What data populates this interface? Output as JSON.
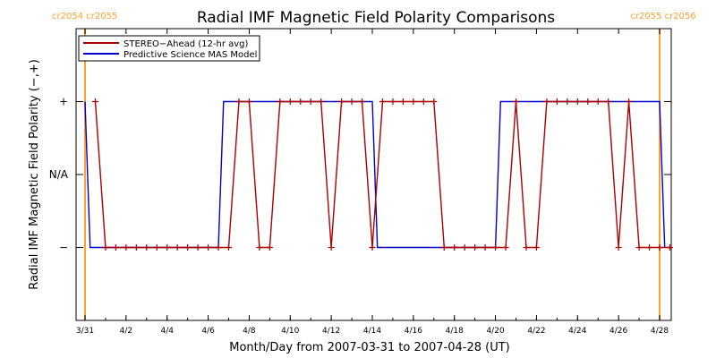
{
  "chart_data": {
    "type": "line",
    "title": "Radial IMF Magnetic Field Polarity Comparisons",
    "xlabel": "Month/Day from 2007-03-31 to 2007-04-28 (UT)",
    "ylabel": "Radial IMF Magnetic Field Polarity (−,+)",
    "x_range": [
      "2007-03-31",
      "2007-04-28"
    ],
    "x_ticks": [
      {
        "date": "2007-03-31",
        "label": "3/31"
      },
      {
        "date": "2007-04-02",
        "label": "4/2"
      },
      {
        "date": "2007-04-04",
        "label": "4/4"
      },
      {
        "date": "2007-04-06",
        "label": "4/6"
      },
      {
        "date": "2007-04-08",
        "label": "4/8"
      },
      {
        "date": "2007-04-10",
        "label": "4/10"
      },
      {
        "date": "2007-04-12",
        "label": "4/12"
      },
      {
        "date": "2007-04-14",
        "label": "4/14"
      },
      {
        "date": "2007-04-16",
        "label": "4/16"
      },
      {
        "date": "2007-04-18",
        "label": "4/18"
      },
      {
        "date": "2007-04-20",
        "label": "4/20"
      },
      {
        "date": "2007-04-22",
        "label": "4/22"
      },
      {
        "date": "2007-04-24",
        "label": "4/24"
      },
      {
        "date": "2007-04-26",
        "label": "4/26"
      },
      {
        "date": "2007-04-28",
        "label": "4/28"
      }
    ],
    "y_range": [
      -2,
      2
    ],
    "y_ticks": [
      {
        "value": 1,
        "label": "+"
      },
      {
        "value": 0,
        "label": "N/A"
      },
      {
        "value": -1,
        "label": "−"
      }
    ],
    "legend_position": "top-left",
    "series": [
      {
        "name": "STEREO−Ahead (12-hr avg)",
        "color": "#aa0000",
        "marker": "plus",
        "points": [
          [
            "2007-03-31T12:00",
            1
          ],
          [
            "2007-04-01T00:00",
            -1
          ],
          [
            "2007-04-01T12:00",
            -1
          ],
          [
            "2007-04-02T00:00",
            -1
          ],
          [
            "2007-04-02T12:00",
            -1
          ],
          [
            "2007-04-03T00:00",
            -1
          ],
          [
            "2007-04-03T12:00",
            -1
          ],
          [
            "2007-04-04T00:00",
            -1
          ],
          [
            "2007-04-04T12:00",
            -1
          ],
          [
            "2007-04-05T00:00",
            -1
          ],
          [
            "2007-04-05T12:00",
            -1
          ],
          [
            "2007-04-06T00:00",
            -1
          ],
          [
            "2007-04-06T12:00",
            -1
          ],
          [
            "2007-04-07T00:00",
            -1
          ],
          [
            "2007-04-07T12:00",
            1
          ],
          [
            "2007-04-08T00:00",
            1
          ],
          [
            "2007-04-08T12:00",
            -1
          ],
          [
            "2007-04-09T00:00",
            -1
          ],
          [
            "2007-04-09T12:00",
            1
          ],
          [
            "2007-04-10T00:00",
            1
          ],
          [
            "2007-04-10T12:00",
            1
          ],
          [
            "2007-04-11T00:00",
            1
          ],
          [
            "2007-04-11T12:00",
            1
          ],
          [
            "2007-04-12T00:00",
            -1
          ],
          [
            "2007-04-12T12:00",
            1
          ],
          [
            "2007-04-13T00:00",
            1
          ],
          [
            "2007-04-13T12:00",
            1
          ],
          [
            "2007-04-14T00:00",
            -1
          ],
          [
            "2007-04-14T12:00",
            1
          ],
          [
            "2007-04-15T00:00",
            1
          ],
          [
            "2007-04-15T12:00",
            1
          ],
          [
            "2007-04-16T00:00",
            1
          ],
          [
            "2007-04-16T12:00",
            1
          ],
          [
            "2007-04-17T00:00",
            1
          ],
          [
            "2007-04-17T12:00",
            -1
          ],
          [
            "2007-04-18T00:00",
            -1
          ],
          [
            "2007-04-18T12:00",
            -1
          ],
          [
            "2007-04-19T00:00",
            -1
          ],
          [
            "2007-04-19T12:00",
            -1
          ],
          [
            "2007-04-20T00:00",
            -1
          ],
          [
            "2007-04-20T12:00",
            -1
          ],
          [
            "2007-04-21T00:00",
            1
          ],
          [
            "2007-04-21T12:00",
            -1
          ],
          [
            "2007-04-22T00:00",
            -1
          ],
          [
            "2007-04-22T12:00",
            1
          ],
          [
            "2007-04-23T00:00",
            1
          ],
          [
            "2007-04-23T12:00",
            1
          ],
          [
            "2007-04-24T00:00",
            1
          ],
          [
            "2007-04-24T12:00",
            1
          ],
          [
            "2007-04-25T00:00",
            1
          ],
          [
            "2007-04-25T12:00",
            1
          ],
          [
            "2007-04-26T00:00",
            -1
          ],
          [
            "2007-04-26T12:00",
            1
          ],
          [
            "2007-04-27T00:00",
            -1
          ],
          [
            "2007-04-27T12:00",
            -1
          ],
          [
            "2007-04-28T00:00",
            -1
          ],
          [
            "2007-04-28T12:00",
            -1
          ]
        ]
      },
      {
        "name": "Predictive Science MAS Model",
        "color": "#0000cc",
        "marker": "none",
        "points": [
          [
            "2007-03-31T00:00",
            1
          ],
          [
            "2007-03-31T06:00",
            -1
          ],
          [
            "2007-04-06T12:00",
            -1
          ],
          [
            "2007-04-06T18:00",
            1
          ],
          [
            "2007-04-14T00:00",
            1
          ],
          [
            "2007-04-14T06:00",
            -1
          ],
          [
            "2007-04-20T00:00",
            -1
          ],
          [
            "2007-04-20T06:00",
            1
          ],
          [
            "2007-04-28T00:00",
            1
          ],
          [
            "2007-04-28T06:00",
            -1
          ]
        ]
      }
    ],
    "carrington_markers": [
      {
        "date": "2007-03-31T00:00",
        "label": "cr2054 cr2055",
        "color": "#ffa030"
      },
      {
        "date": "2007-04-28T00:00",
        "label": "cr2055 cr2056",
        "color": "#ffa030"
      }
    ]
  }
}
